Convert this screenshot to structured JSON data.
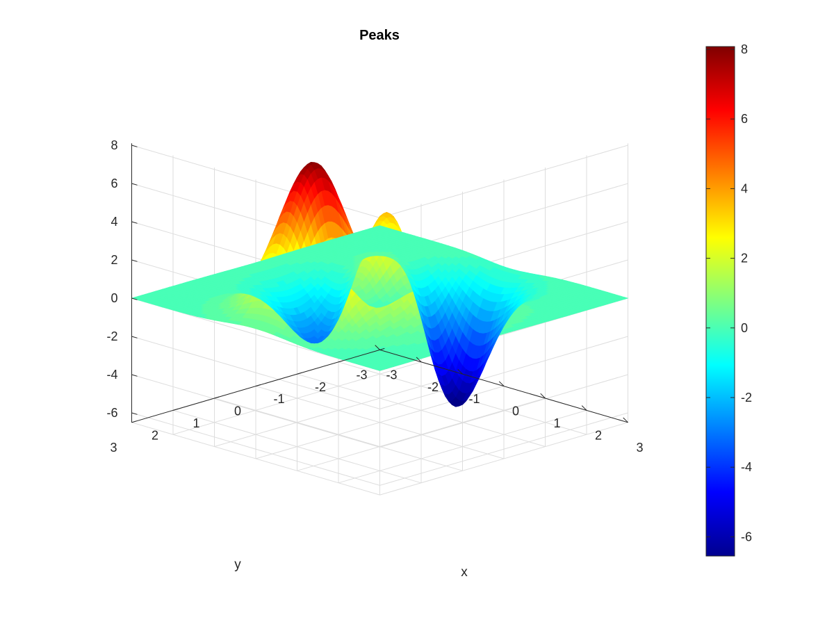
{
  "chart_data": {
    "type": "surface",
    "title": "Peaks",
    "xlabel": "x",
    "ylabel": "y",
    "zlabel": "",
    "function": "peaks",
    "xlim": [
      -3,
      3
    ],
    "ylim": [
      -3,
      3
    ],
    "zlim": [
      -6.5,
      8.1
    ],
    "x_ticks": [
      "-3",
      "-2",
      "-1",
      "0",
      "1",
      "2",
      "3"
    ],
    "y_ticks": [
      "-3",
      "-2",
      "-1",
      "0",
      "1",
      "2",
      "3"
    ],
    "z_ticks": [
      "-6",
      "-4",
      "-2",
      "0",
      "2",
      "4",
      "6",
      "8"
    ],
    "colorbar": {
      "colormap": "jet",
      "range": [
        -6.55,
        8.08
      ],
      "ticks": [
        "-6",
        "-4",
        "-2",
        "0",
        "2",
        "4",
        "6",
        "8"
      ]
    },
    "grid": true,
    "colors": {
      "axis": "#262626",
      "grid": "#dddddd",
      "background": "#ffffff"
    }
  }
}
